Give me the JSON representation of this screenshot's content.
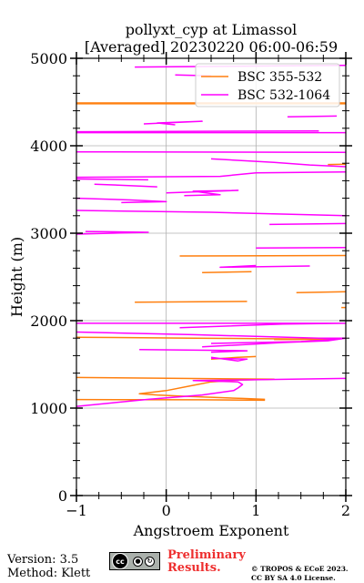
{
  "chart_data": {
    "type": "line",
    "title": "pollyxt_cyp at Limassol",
    "subtitle": "[Averaged] 20230220 06:00-06:59",
    "xlabel": "Angstroem Exponent",
    "ylabel": "Height (m)",
    "xlim": [
      -1,
      2
    ],
    "ylim": [
      0,
      5000
    ],
    "xticks": [
      "−1",
      "0",
      "1",
      "2"
    ],
    "xtick_values": [
      -1,
      0,
      1,
      2
    ],
    "yticks": [
      "0",
      "1000",
      "2000",
      "3000",
      "4000",
      "5000"
    ],
    "ytick_values": [
      0,
      1000,
      2000,
      3000,
      4000,
      5000
    ],
    "grid": true,
    "legend_position": "top-right",
    "series": [
      {
        "name": "BSC 355-532",
        "color": "#ff7f0e",
        "segments": [
          [
            [
              1.1,
              1090
            ],
            [
              0.4,
              1095
            ],
            [
              -1.0,
              1098
            ]
          ],
          [
            [
              1.1,
              1100
            ],
            [
              0.85,
              1110
            ],
            [
              0.6,
              1120
            ],
            [
              0.2,
              1135
            ],
            [
              -0.1,
              1150
            ],
            [
              -0.3,
              1165
            ],
            [
              0.0,
              1200
            ],
            [
              0.3,
              1260
            ],
            [
              0.5,
              1300
            ],
            [
              0.8,
              1320
            ],
            [
              1.2,
              1330
            ],
            [
              -1.0,
              1350
            ]
          ],
          [
            [
              0.5,
              1560
            ],
            [
              0.8,
              1580
            ],
            [
              1.0,
              1590
            ]
          ],
          [
            [
              -1.0,
              1810
            ],
            [
              0.3,
              1800
            ],
            [
              1.0,
              1795
            ],
            [
              1.6,
              1790
            ],
            [
              1.9,
              1785
            ],
            [
              1.2,
              1785
            ]
          ],
          [
            [
              1.95,
              2150
            ],
            [
              2.0,
              2150
            ]
          ],
          [
            [
              -0.35,
              2210
            ],
            [
              0.9,
              2220
            ]
          ],
          [
            [
              1.45,
              2320
            ],
            [
              2.0,
              2330
            ]
          ],
          [
            [
              0.4,
              2550
            ],
            [
              0.95,
              2560
            ]
          ],
          [
            [
              0.15,
              2740
            ],
            [
              2.0,
              2745
            ]
          ],
          [
            [
              1.8,
              3785
            ],
            [
              2.0,
              3790
            ]
          ],
          [
            [
              -1.0,
              4490
            ],
            [
              2.0,
              4490
            ]
          ],
          [
            [
              -1.0,
              4480
            ],
            [
              2.0,
              4480
            ]
          ]
        ]
      },
      {
        "name": "BSC 532-1064",
        "color": "#ff00ff",
        "segments": [
          [
            [
              2.0,
              1340
            ],
            [
              0.7,
              1320
            ],
            [
              0.3,
              1315
            ],
            [
              0.8,
              1300
            ],
            [
              0.85,
              1270
            ],
            [
              0.8,
              1230
            ],
            [
              0.75,
              1200
            ],
            [
              0.4,
              1150
            ],
            [
              -0.2,
              1100
            ],
            [
              -0.6,
              1060
            ],
            [
              -1.0,
              1020
            ]
          ],
          [
            [
              0.5,
              1570
            ],
            [
              0.9,
              1560
            ],
            [
              0.8,
              1540
            ],
            [
              0.5,
              1580
            ]
          ],
          [
            [
              -0.3,
              1670
            ],
            [
              0.6,
              1660
            ],
            [
              0.9,
              1655
            ],
            [
              0.5,
              1640
            ]
          ],
          [
            [
              0.4,
              1700
            ],
            [
              1.3,
              1750
            ],
            [
              1.8,
              1770
            ],
            [
              2.0,
              1800
            ],
            [
              1.7,
              1800
            ],
            [
              1.0,
              1820
            ],
            [
              0.3,
              1840
            ],
            [
              -1.0,
              1870
            ]
          ],
          [
            [
              0.5,
              1740
            ],
            [
              1.5,
              1760
            ],
            [
              1.9,
              1790
            ]
          ],
          [
            [
              0.15,
              1920
            ],
            [
              1.3,
              1960
            ],
            [
              2.0,
              1970
            ],
            [
              -1.0,
              1970
            ]
          ],
          [
            [
              1.0,
              2630
            ],
            [
              0.6,
              2610
            ],
            [
              1.6,
              2625
            ]
          ],
          [
            [
              1.0,
              2830
            ],
            [
              2.0,
              2835
            ]
          ],
          [
            [
              1.15,
              3100
            ],
            [
              2.0,
              3110
            ]
          ],
          [
            [
              -1.0,
              2990
            ],
            [
              -0.2,
              3010
            ],
            [
              -0.9,
              3020
            ]
          ],
          [
            [
              -1.0,
              3260
            ],
            [
              0.5,
              3240
            ],
            [
              1.6,
              3210
            ],
            [
              2.0,
              3200
            ]
          ],
          [
            [
              -1.0,
              3400
            ],
            [
              -0.4,
              3380
            ],
            [
              0.0,
              3360
            ],
            [
              -0.5,
              3350
            ]
          ],
          [
            [
              0.2,
              3430
            ],
            [
              0.6,
              3440
            ],
            [
              0.3,
              3480
            ],
            [
              0.8,
              3490
            ],
            [
              0.0,
              3460
            ]
          ],
          [
            [
              -0.8,
              3560
            ],
            [
              -0.3,
              3540
            ],
            [
              -0.1,
              3530
            ]
          ],
          [
            [
              -1.0,
              3640
            ],
            [
              0.6,
              3650
            ],
            [
              1.0,
              3690
            ],
            [
              2.0,
              3700
            ]
          ],
          [
            [
              -1.0,
              3620
            ],
            [
              -0.2,
              3610
            ]
          ],
          [
            [
              0.5,
              3850
            ],
            [
              1.2,
              3810
            ],
            [
              1.6,
              3780
            ],
            [
              2.0,
              3760
            ]
          ],
          [
            [
              -1.0,
              3930
            ],
            [
              2.0,
              3925
            ]
          ],
          [
            [
              -1.0,
              4160
            ],
            [
              1.7,
              4170
            ]
          ],
          [
            [
              -0.25,
              4250
            ],
            [
              0.4,
              4280
            ],
            [
              -0.1,
              4260
            ],
            [
              0.1,
              4240
            ]
          ],
          [
            [
              1.35,
              4330
            ],
            [
              1.9,
              4340
            ]
          ],
          [
            [
              -0.35,
              4900
            ],
            [
              2.0,
              4920
            ]
          ],
          [
            [
              0.1,
              4810
            ],
            [
              0.5,
              4800
            ]
          ],
          [
            [
              -1.0,
              4150
            ],
            [
              2.0,
              4150
            ]
          ]
        ]
      }
    ]
  },
  "footer": {
    "version": "Version: 3.5",
    "method": "Method: Klett",
    "preliminary_line1": "Preliminary",
    "preliminary_line2": "Results.",
    "copyright_line1": "© TROPOS & ECoE 2023.",
    "copyright_line2": "CC BY SA 4.0 License.",
    "cc_badge": "cc",
    "cc_icons": [
      "by-icon",
      "sa-icon"
    ]
  }
}
